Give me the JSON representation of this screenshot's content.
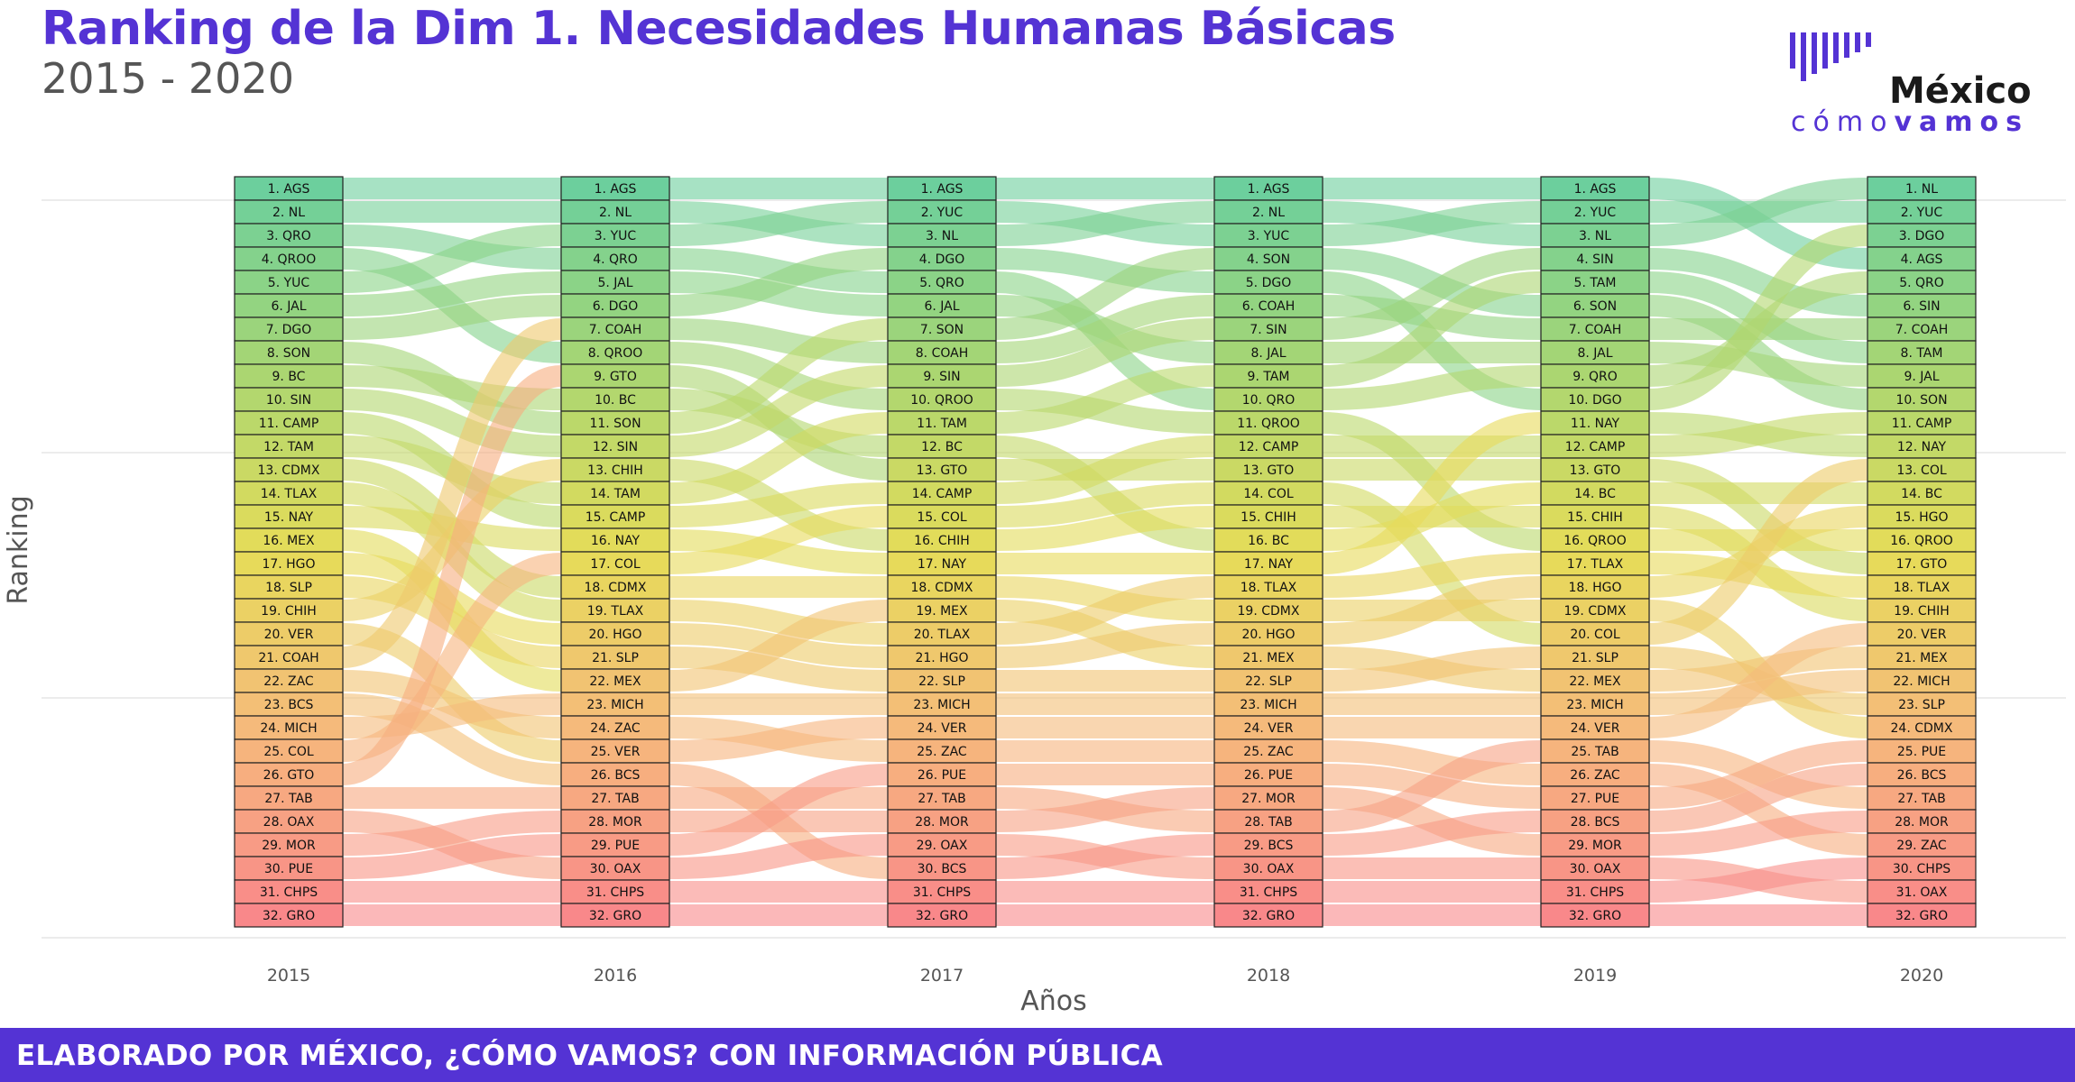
{
  "header": {
    "title": "Ranking de la Dim 1. Necesidades Humanas Básicas",
    "subtitle": "2015 - 2020"
  },
  "logo": {
    "name": "México",
    "tagline_light": "cómo",
    "tagline_bold": "vamos",
    "bar_color": "#5433d4"
  },
  "footer": {
    "text": "ELABORADO POR MÉXICO, ¿CÓMO VAMOS? CON INFORMACIÓN PÚBLICA",
    "background": "#5433d4"
  },
  "colors": {
    "title": "#5433d4",
    "rank_scale": [
      "#6ccf9d",
      "#a9d672",
      "#e6dc58",
      "#f6b97c",
      "#f9888a"
    ]
  },
  "chart_data": {
    "type": "bump",
    "xlabel": "Años",
    "ylabel": "Ranking",
    "years": [
      "2015",
      "2016",
      "2017",
      "2018",
      "2019",
      "2020"
    ],
    "grid": true,
    "rankings": [
      [
        "AGS",
        "NL",
        "QRO",
        "QROO",
        "YUC",
        "JAL",
        "DGO",
        "SON",
        "BC",
        "SIN",
        "CAMP",
        "TAM",
        "CDMX",
        "TLAX",
        "NAY",
        "MEX",
        "HGO",
        "SLP",
        "CHIH",
        "VER",
        "COAH",
        "ZAC",
        "BCS",
        "MICH",
        "COL",
        "GTO",
        "TAB",
        "OAX",
        "MOR",
        "PUE",
        "CHPS",
        "GRO"
      ],
      [
        "AGS",
        "NL",
        "YUC",
        "QRO",
        "JAL",
        "DGO",
        "COAH",
        "QROO",
        "GTO",
        "BC",
        "SON",
        "SIN",
        "CHIH",
        "TAM",
        "CAMP",
        "NAY",
        "COL",
        "CDMX",
        "TLAX",
        "HGO",
        "SLP",
        "MEX",
        "MICH",
        "ZAC",
        "VER",
        "BCS",
        "TAB",
        "MOR",
        "PUE",
        "OAX",
        "CHPS",
        "GRO"
      ],
      [
        "AGS",
        "YUC",
        "NL",
        "DGO",
        "QRO",
        "JAL",
        "SON",
        "COAH",
        "SIN",
        "QROO",
        "TAM",
        "BC",
        "GTO",
        "CAMP",
        "COL",
        "CHIH",
        "NAY",
        "CDMX",
        "MEX",
        "TLAX",
        "HGO",
        "SLP",
        "MICH",
        "VER",
        "ZAC",
        "PUE",
        "TAB",
        "MOR",
        "OAX",
        "BCS",
        "CHPS",
        "GRO"
      ],
      [
        "AGS",
        "NL",
        "YUC",
        "SON",
        "DGO",
        "COAH",
        "SIN",
        "JAL",
        "TAM",
        "QRO",
        "QROO",
        "CAMP",
        "GTO",
        "COL",
        "CHIH",
        "BC",
        "NAY",
        "TLAX",
        "CDMX",
        "HGO",
        "MEX",
        "SLP",
        "MICH",
        "VER",
        "ZAC",
        "PUE",
        "MOR",
        "TAB",
        "BCS",
        "OAX",
        "CHPS",
        "GRO"
      ],
      [
        "AGS",
        "YUC",
        "NL",
        "SIN",
        "TAM",
        "SON",
        "COAH",
        "JAL",
        "QRO",
        "DGO",
        "NAY",
        "CAMP",
        "GTO",
        "BC",
        "CHIH",
        "QROO",
        "TLAX",
        "HGO",
        "CDMX",
        "COL",
        "SLP",
        "MEX",
        "MICH",
        "VER",
        "TAB",
        "ZAC",
        "PUE",
        "BCS",
        "MOR",
        "OAX",
        "CHPS",
        "GRO"
      ],
      [
        "NL",
        "YUC",
        "DGO",
        "AGS",
        "QRO",
        "SIN",
        "COAH",
        "TAM",
        "JAL",
        "SON",
        "CAMP",
        "NAY",
        "COL",
        "BC",
        "HGO",
        "QROO",
        "GTO",
        "TLAX",
        "CHIH",
        "VER",
        "MEX",
        "MICH",
        "SLP",
        "CDMX",
        "PUE",
        "BCS",
        "TAB",
        "MOR",
        "ZAC",
        "CHPS",
        "OAX",
        "GRO"
      ]
    ]
  }
}
